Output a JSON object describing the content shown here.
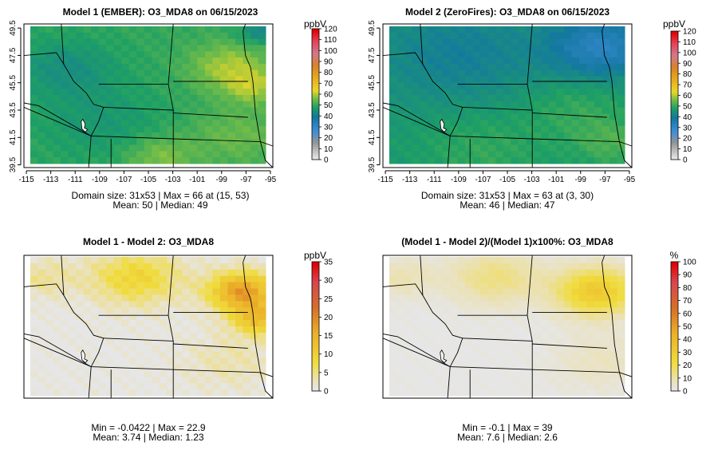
{
  "chart_data": [
    {
      "type": "heatmap",
      "id": "p1",
      "title": "Model 1 (EMBER): O3_MDA8 on 06/15/2023",
      "x_ticks": [
        "-115",
        "-113",
        "-111",
        "-109",
        "-107",
        "-105",
        "-103",
        "-101",
        "-99",
        "-97",
        "-95"
      ],
      "y_ticks": [
        "39.5",
        "41.5",
        "43.5",
        "45.5",
        "47.5",
        "49.5"
      ],
      "xlim": [
        -115.2,
        -94.8
      ],
      "ylim": [
        39.3,
        49.8
      ],
      "show_axes": true,
      "grid_dims": [
        31,
        53
      ],
      "colorbar": {
        "unit": "ppbV",
        "ticks": [
          "0",
          "10",
          "20",
          "30",
          "40",
          "50",
          "60",
          "70",
          "80",
          "90",
          "100",
          "110",
          "120"
        ],
        "range": [
          0,
          120
        ],
        "palette": "concentration"
      },
      "field": {
        "base": 50,
        "centers": [
          {
            "x": 0.85,
            "y": 0.3,
            "value": 10,
            "spread": 0.12
          },
          {
            "x": 0.95,
            "y": 0.45,
            "value": 8,
            "spread": 0.08
          },
          {
            "x": 0.55,
            "y": 0.95,
            "value": 7,
            "spread": 0.1
          },
          {
            "x": 0.88,
            "y": 0.8,
            "value": 5,
            "spread": 0.15
          },
          {
            "x": 0.15,
            "y": 0.3,
            "value": -6,
            "spread": 0.15
          },
          {
            "x": 0.3,
            "y": 0.7,
            "value": -4,
            "spread": 0.2
          },
          {
            "x": 0.97,
            "y": 0.05,
            "value": -8,
            "spread": 0.06
          }
        ]
      },
      "stats_line1": "Domain size: 31x53 | Max = 66 at (15, 53)",
      "stats_line2": "Mean: 50 |  Median: 49"
    },
    {
      "type": "heatmap",
      "id": "p2",
      "title": "Model 2 (ZeroFires): O3_MDA8 on 06/15/2023",
      "x_ticks": [
        "-115",
        "-113",
        "-111",
        "-109",
        "-107",
        "-105",
        "-103",
        "-101",
        "-99",
        "-97",
        "-95"
      ],
      "y_ticks": [
        "39.5",
        "41.5",
        "43.5",
        "45.5",
        "47.5",
        "49.5"
      ],
      "xlim": [
        -115.2,
        -94.8
      ],
      "ylim": [
        39.3,
        49.8
      ],
      "show_axes": true,
      "grid_dims": [
        31,
        53
      ],
      "colorbar": {
        "unit": "ppbV",
        "ticks": [
          "0",
          "10",
          "20",
          "30",
          "40",
          "50",
          "60",
          "70",
          "80",
          "90",
          "100",
          "110",
          "120"
        ],
        "range": [
          0,
          120
        ],
        "palette": "concentration"
      },
      "field": {
        "base": 46,
        "centers": [
          {
            "x": 0.9,
            "y": 0.15,
            "value": -14,
            "spread": 0.15
          },
          {
            "x": 0.3,
            "y": 0.2,
            "value": -6,
            "spread": 0.25
          },
          {
            "x": 0.4,
            "y": 0.9,
            "value": 4,
            "spread": 0.2
          },
          {
            "x": 0.95,
            "y": 0.85,
            "value": 6,
            "spread": 0.12
          },
          {
            "x": 0.8,
            "y": 0.6,
            "value": 4,
            "spread": 0.15
          }
        ]
      },
      "stats_line1": "Domain size: 31x53 | Max = 63 at (3, 30)",
      "stats_line2": "Mean: 46 |  Median: 47"
    },
    {
      "type": "heatmap",
      "id": "p3",
      "title": "Model 1 - Model 2: O3_MDA8",
      "x_ticks": [],
      "y_ticks": [],
      "xlim": [
        -115.2,
        -94.8
      ],
      "ylim": [
        39.3,
        49.8
      ],
      "show_axes": false,
      "grid_dims": [
        31,
        53
      ],
      "colorbar": {
        "unit": "ppbV",
        "ticks": [
          "0",
          "5",
          "10",
          "15",
          "20",
          "25",
          "30",
          "35"
        ],
        "range": [
          0,
          35
        ],
        "palette": "difference"
      },
      "field": {
        "base": 0,
        "centers": [
          {
            "x": 0.9,
            "y": 0.25,
            "value": 18,
            "spread": 0.1
          },
          {
            "x": 0.97,
            "y": 0.45,
            "value": 12,
            "spread": 0.08
          },
          {
            "x": 0.45,
            "y": 0.15,
            "value": 9,
            "spread": 0.14
          },
          {
            "x": 0.05,
            "y": 0.15,
            "value": 4,
            "spread": 0.1
          },
          {
            "x": 0.85,
            "y": 0.75,
            "value": 3,
            "spread": 0.15
          }
        ]
      },
      "stats_line1": "Min = -0.0422 | Max = 22.9",
      "stats_line2": "Mean: 3.74 |  Median: 1.23"
    },
    {
      "type": "heatmap",
      "id": "p4",
      "title": "(Model 1 - Model 2)/(Model 1)x100%: O3_MDA8",
      "x_ticks": [],
      "y_ticks": [],
      "xlim": [
        -115.2,
        -94.8
      ],
      "ylim": [
        39.3,
        49.8
      ],
      "show_axes": false,
      "grid_dims": [
        31,
        53
      ],
      "colorbar": {
        "unit": "%",
        "ticks": [
          "0",
          "10",
          "20",
          "30",
          "40",
          "50",
          "60",
          "70",
          "80",
          "90",
          "100"
        ],
        "range": [
          0,
          100
        ],
        "palette": "difference"
      },
      "field": {
        "base": 0,
        "centers": [
          {
            "x": 0.88,
            "y": 0.25,
            "value": 32,
            "spread": 0.12
          },
          {
            "x": 0.45,
            "y": 0.15,
            "value": 14,
            "spread": 0.14
          },
          {
            "x": 0.05,
            "y": 0.15,
            "value": 8,
            "spread": 0.1
          },
          {
            "x": 0.9,
            "y": 0.75,
            "value": 6,
            "spread": 0.15
          }
        ]
      },
      "stats_line1": "Min = -0.1 | Max = 39",
      "stats_line2": "Mean: 7.6 |  Median: 2.6"
    }
  ]
}
